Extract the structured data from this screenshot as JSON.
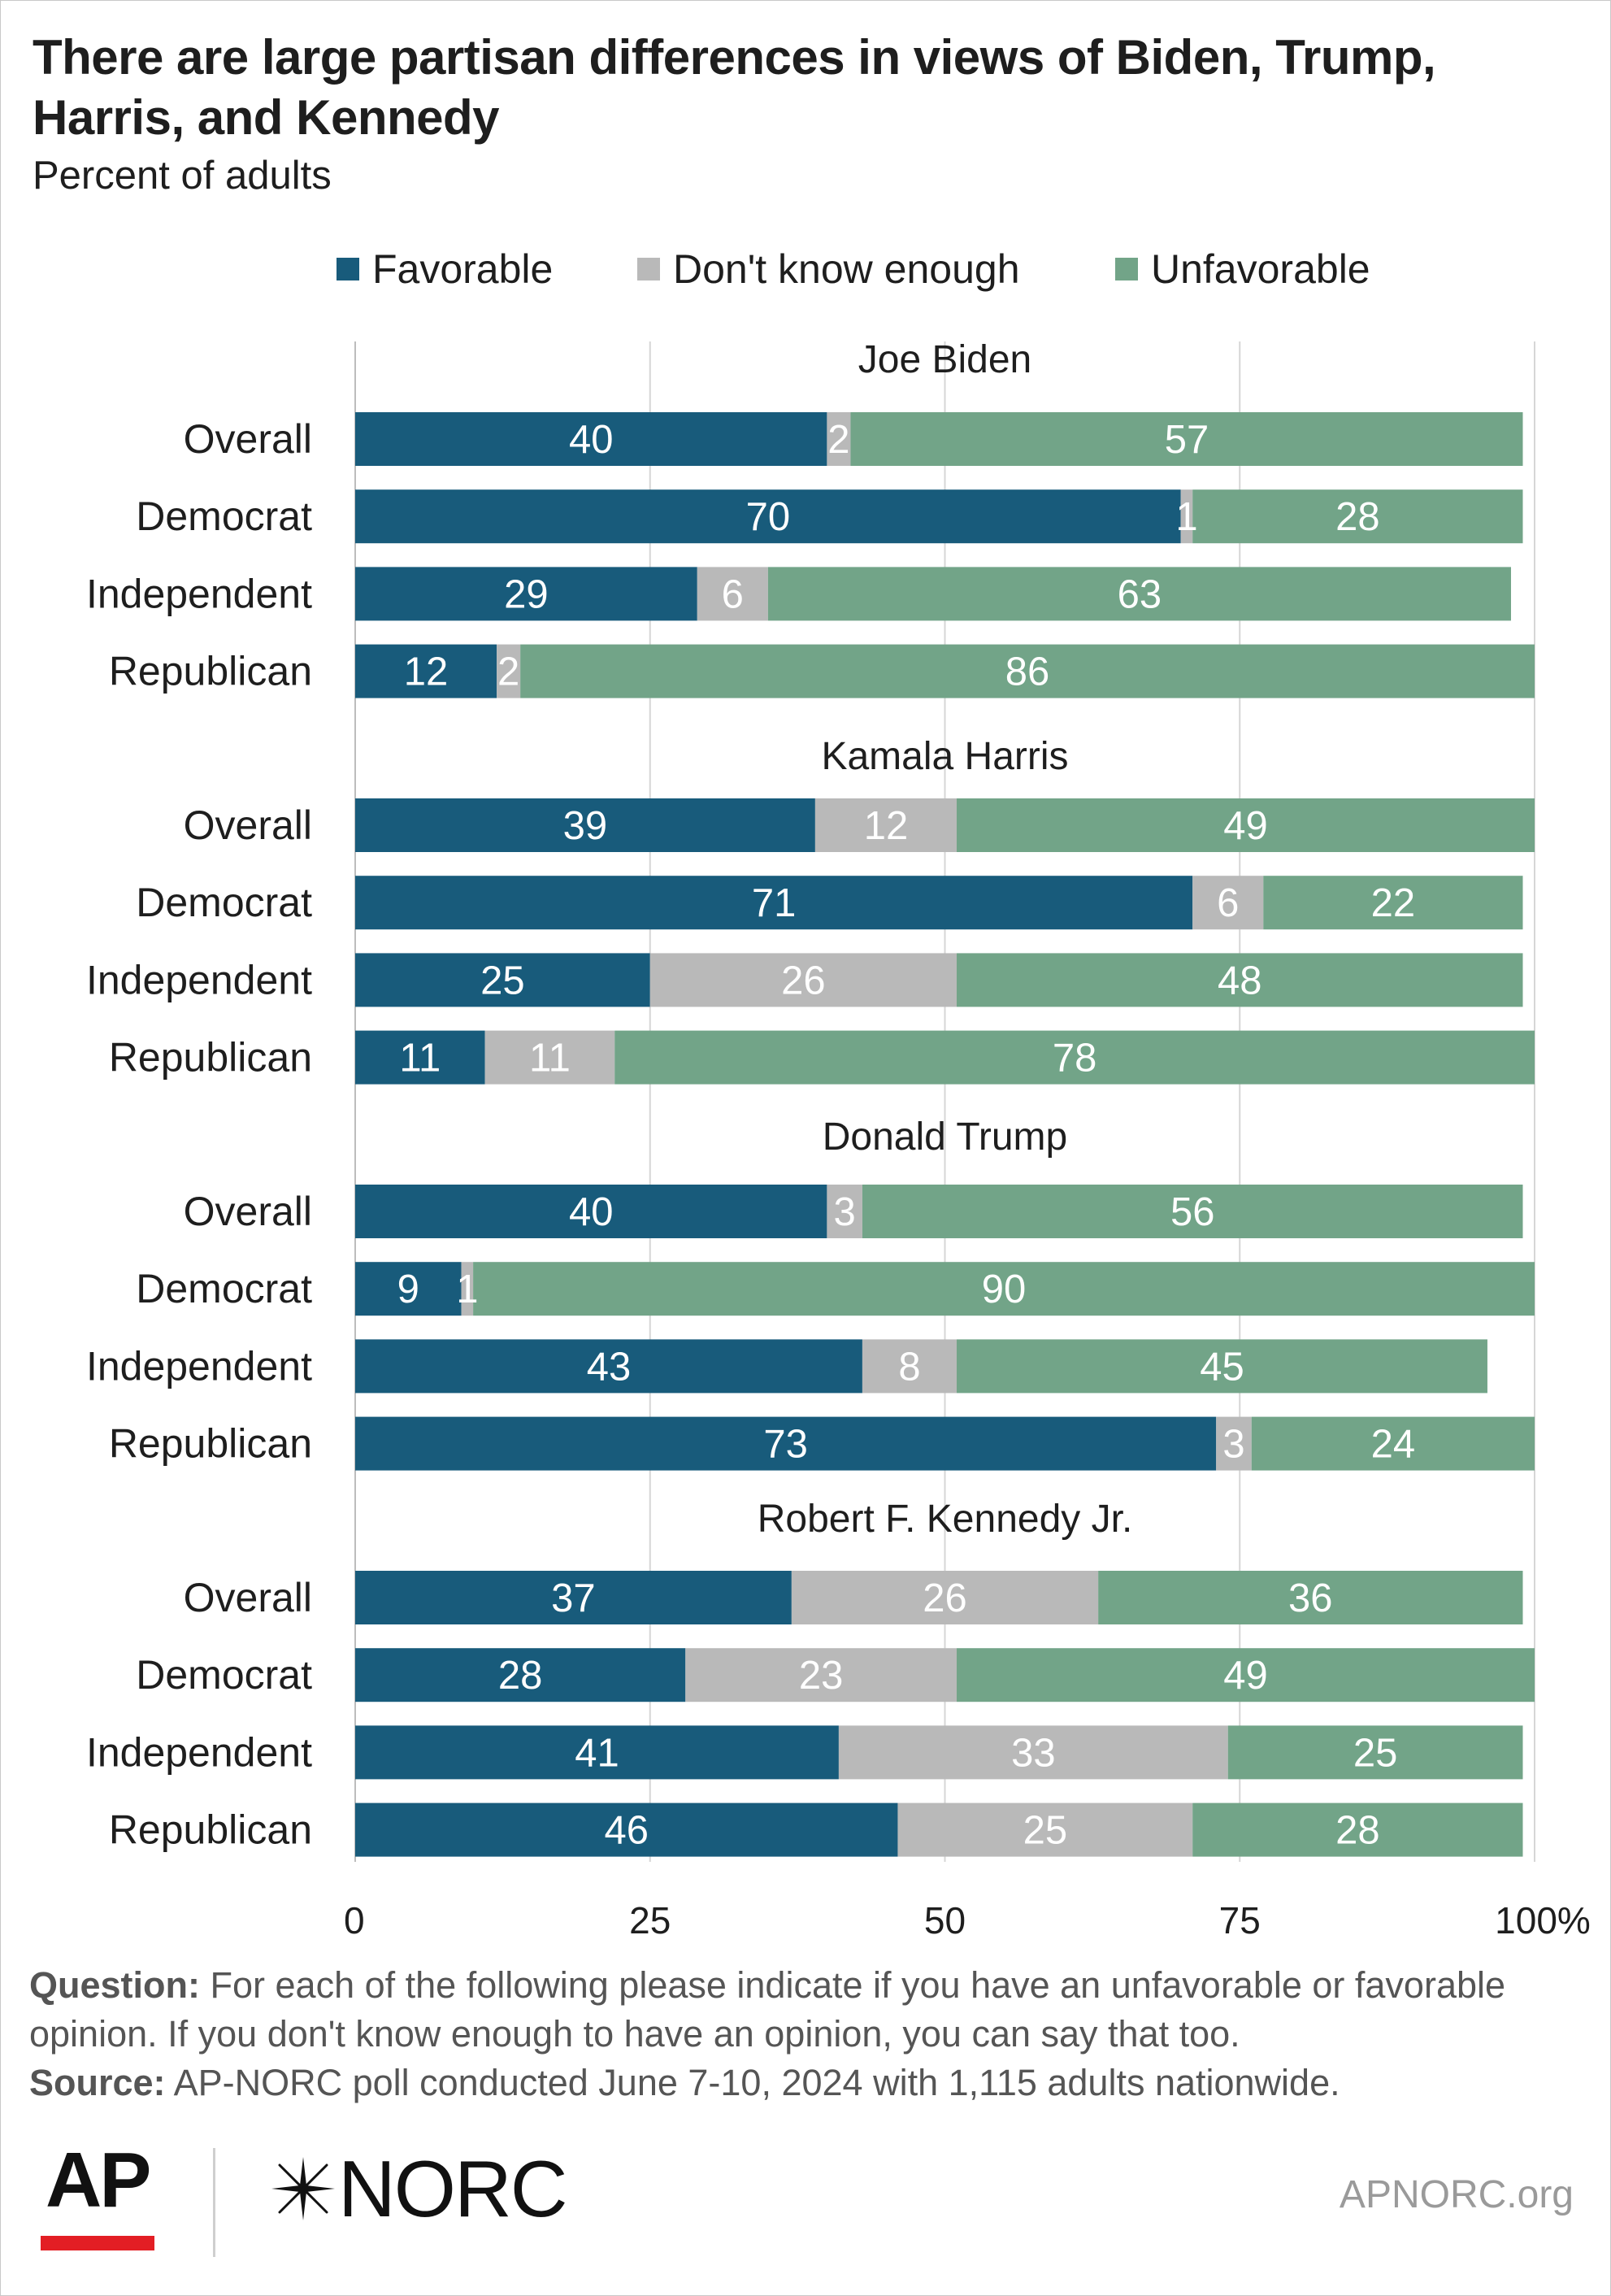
{
  "title": "There are large partisan differences in views of Biden, Trump, Harris, and Kennedy",
  "subtitle": "Percent of adults",
  "colors": {
    "favorable": "#185b7b",
    "dont_know": "#b9b9b9",
    "unfavorable": "#72a488",
    "grid": "#d6d6d6"
  },
  "legend": [
    {
      "label": "Favorable",
      "color": "#185b7b"
    },
    {
      "label": "Don't know enough",
      "color": "#b9b9b9"
    },
    {
      "label": "Unfavorable",
      "color": "#72a488"
    }
  ],
  "chart_data": {
    "type": "bar",
    "orientation": "horizontal",
    "stacked": true,
    "xlim": [
      0,
      100
    ],
    "x_ticks": [
      "0",
      "25",
      "50",
      "75",
      "100%"
    ],
    "series_names": [
      "Favorable",
      "Don't know enough",
      "Unfavorable"
    ],
    "panels": [
      {
        "title": "Joe Biden",
        "rows": [
          {
            "label": "Overall",
            "values": [
              40,
              2,
              57
            ]
          },
          {
            "label": "Democrat",
            "values": [
              70,
              1,
              28
            ]
          },
          {
            "label": "Independent",
            "values": [
              29,
              6,
              63
            ]
          },
          {
            "label": "Republican",
            "values": [
              12,
              2,
              86
            ]
          }
        ]
      },
      {
        "title": "Kamala Harris",
        "rows": [
          {
            "label": "Overall",
            "values": [
              39,
              12,
              49
            ]
          },
          {
            "label": "Democrat",
            "values": [
              71,
              6,
              22
            ]
          },
          {
            "label": "Independent",
            "values": [
              25,
              26,
              48
            ]
          },
          {
            "label": "Republican",
            "values": [
              11,
              11,
              78
            ]
          }
        ]
      },
      {
        "title": "Donald Trump",
        "rows": [
          {
            "label": "Overall",
            "values": [
              40,
              3,
              56
            ]
          },
          {
            "label": "Democrat",
            "values": [
              9,
              1,
              90
            ]
          },
          {
            "label": "Independent",
            "values": [
              43,
              8,
              45
            ]
          },
          {
            "label": "Republican",
            "values": [
              73,
              3,
              24
            ]
          }
        ]
      },
      {
        "title": "Robert F. Kennedy Jr.",
        "rows": [
          {
            "label": "Overall",
            "values": [
              37,
              26,
              36
            ]
          },
          {
            "label": "Democrat",
            "values": [
              28,
              23,
              49
            ]
          },
          {
            "label": "Independent",
            "values": [
              41,
              33,
              25
            ]
          },
          {
            "label": "Republican",
            "values": [
              46,
              25,
              28
            ]
          }
        ]
      }
    ]
  },
  "footnote": {
    "question_label": "Question:",
    "question_text": "For each of the following please indicate if you have an unfavorable or favorable opinion. If you don't know enough to have an opinion, you can say that too.",
    "source_label": "Source:",
    "source_text": "AP-NORC poll conducted June 7-10, 2024 with 1,115 adults nationwide."
  },
  "branding": {
    "ap_logo": "AP",
    "norc_logo": "NORC",
    "norc_icon": "asterisk-star-icon",
    "site": "APNORC.org"
  }
}
